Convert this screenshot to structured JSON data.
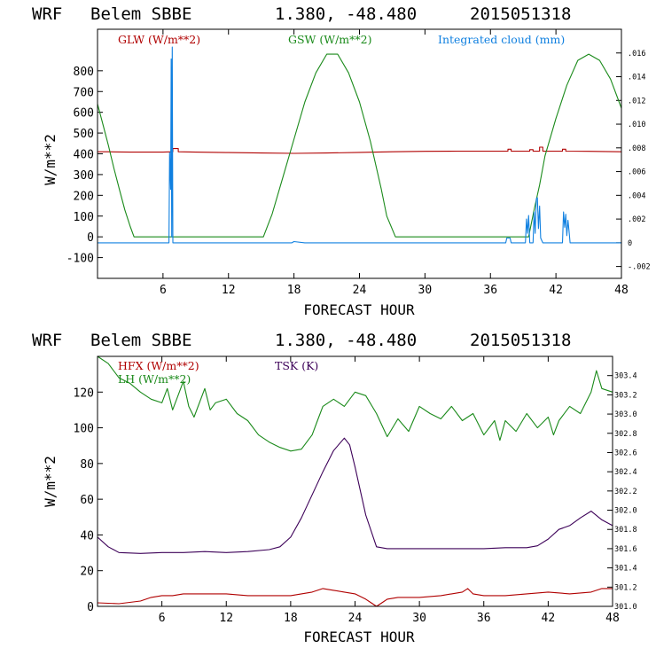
{
  "colors": {
    "red": "#b00000",
    "green": "#1a8a1a",
    "blue": "#1080e0",
    "purple": "#3c0058",
    "black": "#000000"
  },
  "chart_data": [
    {
      "type": "line",
      "header": {
        "model": "WRF",
        "station": "Belem SBBE",
        "coords": "1.380, -48.480",
        "init": "2015051318"
      },
      "xlabel": "FORECAST HOUR",
      "ylabel": "W/m**2",
      "xlim": [
        0,
        48
      ],
      "x_ticks": [
        6,
        12,
        18,
        24,
        30,
        36,
        42,
        48
      ],
      "ylim": [
        -200,
        1000
      ],
      "y_ticks": [
        -100,
        0,
        100,
        200,
        300,
        400,
        500,
        600,
        700,
        800
      ],
      "y2lim": [
        -0.003,
        0.018
      ],
      "y2_ticks": [
        ".016",
        ".014",
        ".012",
        ".010",
        ".008",
        ".006",
        ".004",
        ".002",
        "0",
        "-.002"
      ],
      "series": [
        {
          "name": "GLW (W/m**2)",
          "axis": "left",
          "color": "red",
          "points": [
            [
              0,
              410
            ],
            [
              1,
              410
            ],
            [
              2,
              409
            ],
            [
              3,
              408
            ],
            [
              4,
              408
            ],
            [
              5,
              408
            ],
            [
              6,
              408
            ],
            [
              6.9,
              410
            ],
            [
              6.9,
              425
            ],
            [
              7.4,
              425
            ],
            [
              7.4,
              410
            ],
            [
              9,
              408
            ],
            [
              12,
              406
            ],
            [
              15,
              404
            ],
            [
              18,
              402
            ],
            [
              21,
              404
            ],
            [
              24,
              407
            ],
            [
              27,
              410
            ],
            [
              30,
              412
            ],
            [
              33,
              413
            ],
            [
              36,
              413
            ],
            [
              37.6,
              413
            ],
            [
              37.6,
              422
            ],
            [
              37.9,
              422
            ],
            [
              37.9,
              413
            ],
            [
              39.6,
              413
            ],
            [
              39.6,
              420
            ],
            [
              39.9,
              420
            ],
            [
              39.9,
              413
            ],
            [
              40.5,
              413
            ],
            [
              40.5,
              432
            ],
            [
              40.8,
              432
            ],
            [
              40.8,
              413
            ],
            [
              42.6,
              413
            ],
            [
              42.6,
              422
            ],
            [
              42.9,
              422
            ],
            [
              42.9,
              413
            ],
            [
              45,
              412
            ],
            [
              48,
              410
            ]
          ]
        },
        {
          "name": "GSW (W/m**2)",
          "axis": "left",
          "color": "green",
          "points": [
            [
              0,
              640
            ],
            [
              0.5,
              540
            ],
            [
              1,
              440
            ],
            [
              1.5,
              330
            ],
            [
              2,
              230
            ],
            [
              2.5,
              130
            ],
            [
              3,
              50
            ],
            [
              3.35,
              0
            ],
            [
              15.2,
              0
            ],
            [
              16,
              110
            ],
            [
              17,
              290
            ],
            [
              18,
              470
            ],
            [
              19,
              650
            ],
            [
              20,
              790
            ],
            [
              21,
              880
            ],
            [
              22,
              880
            ],
            [
              23,
              790
            ],
            [
              24,
              650
            ],
            [
              25,
              460
            ],
            [
              26,
              230
            ],
            [
              26.5,
              100
            ],
            [
              27.3,
              0
            ],
            [
              39.5,
              0
            ],
            [
              40,
              130
            ],
            [
              40.5,
              250
            ],
            [
              41,
              390
            ],
            [
              42,
              570
            ],
            [
              43,
              730
            ],
            [
              44,
              850
            ],
            [
              45,
              880
            ],
            [
              46,
              850
            ],
            [
              47,
              760
            ],
            [
              48,
              620
            ]
          ]
        },
        {
          "name": "Integrated cloud (mm)",
          "axis": "right",
          "color": "blue",
          "points": [
            [
              0,
              0
            ],
            [
              6.55,
              0
            ],
            [
              6.6,
              0.0076
            ],
            [
              6.7,
              0.0045
            ],
            [
              6.75,
              0.0155
            ],
            [
              6.8,
              0.0005
            ],
            [
              6.85,
              0.0165
            ],
            [
              6.9,
              0
            ],
            [
              17.8,
              0
            ],
            [
              18,
              0.0001
            ],
            [
              19,
              0
            ],
            [
              37.4,
              0
            ],
            [
              37.5,
              0.0004
            ],
            [
              37.8,
              0.0004
            ],
            [
              37.9,
              0
            ],
            [
              39.2,
              0
            ],
            [
              39.3,
              0.002
            ],
            [
              39.4,
              0.0008
            ],
            [
              39.5,
              0.0023
            ],
            [
              39.6,
              0
            ],
            [
              39.9,
              0
            ],
            [
              40,
              0.0026
            ],
            [
              40.1,
              0.0008
            ],
            [
              40.2,
              0.0037
            ],
            [
              40.3,
              0.0038
            ],
            [
              40.4,
              0.0012
            ],
            [
              40.5,
              0.0031
            ],
            [
              40.6,
              0.0004
            ],
            [
              40.8,
              0
            ],
            [
              42.6,
              0
            ],
            [
              42.7,
              0.0026
            ],
            [
              42.8,
              0.0013
            ],
            [
              42.9,
              0.0024
            ],
            [
              43,
              0.0006
            ],
            [
              43.1,
              0.0019
            ],
            [
              43.2,
              0.001
            ],
            [
              43.3,
              0
            ],
            [
              48,
              0
            ]
          ]
        }
      ]
    },
    {
      "type": "line",
      "header": {
        "model": "WRF",
        "station": "Belem SBBE",
        "coords": "1.380, -48.480",
        "init": "2015051318"
      },
      "xlabel": "FORECAST HOUR",
      "ylabel": "W/m**2",
      "xlim": [
        0,
        48
      ],
      "x_ticks": [
        6,
        12,
        18,
        24,
        30,
        36,
        42,
        48
      ],
      "ylim": [
        0,
        140
      ],
      "y_ticks": [
        0,
        20,
        40,
        60,
        80,
        100,
        120
      ],
      "y2lim": [
        301.0,
        303.6
      ],
      "y2_ticks": [
        "303.4",
        "303.2",
        "303.0",
        "302.8",
        "302.6",
        "302.4",
        "302.2",
        "302.0",
        "301.8",
        "301.6",
        "301.4",
        "301.2",
        "301.0"
      ],
      "series": [
        {
          "name": "HFX (W/m**2)",
          "axis": "left",
          "color": "red",
          "points": [
            [
              0,
              2
            ],
            [
              2,
              1.5
            ],
            [
              4,
              3
            ],
            [
              5,
              5
            ],
            [
              6,
              6
            ],
            [
              7,
              6
            ],
            [
              8,
              7
            ],
            [
              10,
              7
            ],
            [
              12,
              7
            ],
            [
              14,
              6
            ],
            [
              16,
              6
            ],
            [
              18,
              6
            ],
            [
              19,
              7
            ],
            [
              20,
              8
            ],
            [
              21,
              10
            ],
            [
              22,
              9
            ],
            [
              23,
              8
            ],
            [
              24,
              7
            ],
            [
              25,
              4
            ],
            [
              25.5,
              2
            ],
            [
              26,
              0
            ],
            [
              26.5,
              2
            ],
            [
              27,
              4
            ],
            [
              28,
              5
            ],
            [
              30,
              5
            ],
            [
              32,
              6
            ],
            [
              34,
              8
            ],
            [
              34.5,
              10
            ],
            [
              35,
              7
            ],
            [
              36,
              6
            ],
            [
              38,
              6
            ],
            [
              40,
              7
            ],
            [
              42,
              8
            ],
            [
              44,
              7
            ],
            [
              46,
              8
            ],
            [
              47,
              10
            ],
            [
              48,
              10
            ]
          ]
        },
        {
          "name": "LH (W/m**2)",
          "axis": "left",
          "color": "green",
          "points": [
            [
              0,
              140
            ],
            [
              1,
              136
            ],
            [
              2,
              128
            ],
            [
              3,
              125
            ],
            [
              4,
              120
            ],
            [
              5,
              116
            ],
            [
              6,
              114
            ],
            [
              6.5,
              122
            ],
            [
              7,
              110
            ],
            [
              7.5,
              118
            ],
            [
              8,
              126
            ],
            [
              8.5,
              112
            ],
            [
              9,
              106
            ],
            [
              10,
              122
            ],
            [
              10.5,
              110
            ],
            [
              11,
              114
            ],
            [
              12,
              116
            ],
            [
              13,
              108
            ],
            [
              14,
              104
            ],
            [
              15,
              96
            ],
            [
              16,
              92
            ],
            [
              17,
              89
            ],
            [
              18,
              87
            ],
            [
              19,
              88
            ],
            [
              19.5,
              92
            ],
            [
              20,
              96
            ],
            [
              20.5,
              104
            ],
            [
              21,
              112
            ],
            [
              22,
              116
            ],
            [
              23,
              112
            ],
            [
              24,
              120
            ],
            [
              25,
              118
            ],
            [
              26,
              108
            ],
            [
              27,
              95
            ],
            [
              28,
              105
            ],
            [
              29,
              98
            ],
            [
              30,
              112
            ],
            [
              31,
              108
            ],
            [
              32,
              105
            ],
            [
              33,
              112
            ],
            [
              34,
              104
            ],
            [
              35,
              108
            ],
            [
              36,
              96
            ],
            [
              37,
              104
            ],
            [
              37.5,
              93
            ],
            [
              38,
              104
            ],
            [
              39,
              98
            ],
            [
              40,
              108
            ],
            [
              41,
              100
            ],
            [
              42,
              106
            ],
            [
              42.5,
              96
            ],
            [
              43,
              104
            ],
            [
              44,
              112
            ],
            [
              45,
              108
            ],
            [
              46,
              120
            ],
            [
              46.5,
              132
            ],
            [
              47,
              122
            ],
            [
              48,
              120
            ]
          ]
        },
        {
          "name": "TSK (K)",
          "axis": "right",
          "color": "purple",
          "points": [
            [
              0,
              301.72
            ],
            [
              1,
              301.62
            ],
            [
              2,
              301.56
            ],
            [
              4,
              301.55
            ],
            [
              6,
              301.56
            ],
            [
              8,
              301.56
            ],
            [
              10,
              301.57
            ],
            [
              12,
              301.56
            ],
            [
              14,
              301.57
            ],
            [
              16,
              301.59
            ],
            [
              17,
              301.62
            ],
            [
              18,
              301.72
            ],
            [
              19,
              301.92
            ],
            [
              20,
              302.16
            ],
            [
              21,
              302.4
            ],
            [
              22,
              302.62
            ],
            [
              23,
              302.75
            ],
            [
              23.5,
              302.68
            ],
            [
              24,
              302.45
            ],
            [
              25,
              301.95
            ],
            [
              26,
              301.62
            ],
            [
              27,
              301.6
            ],
            [
              30,
              301.6
            ],
            [
              33,
              301.6
            ],
            [
              36,
              301.6
            ],
            [
              38,
              301.61
            ],
            [
              40,
              301.61
            ],
            [
              41,
              301.63
            ],
            [
              42,
              301.7
            ],
            [
              43,
              301.8
            ],
            [
              44,
              301.84
            ],
            [
              45,
              301.92
            ],
            [
              46,
              301.99
            ],
            [
              47,
              301.9
            ],
            [
              48,
              301.84
            ]
          ]
        }
      ]
    }
  ]
}
